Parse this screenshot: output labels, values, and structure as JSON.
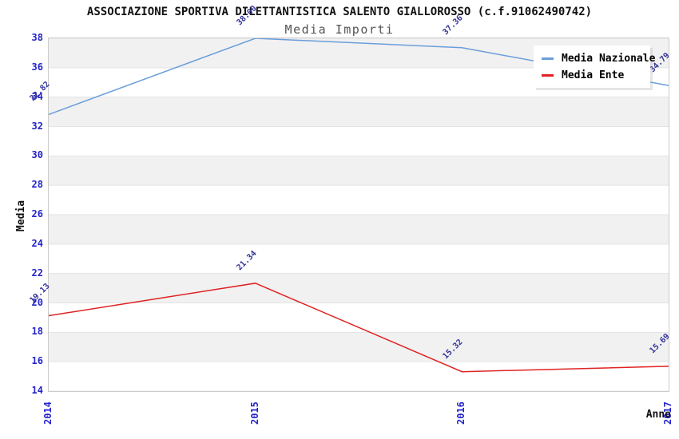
{
  "header": {
    "title": "ASSOCIAZIONE SPORTIVA DILETTANTISTICA SALENTO GIALLOROSSO (c.f.91062490742)",
    "subtitle": "Media Importi"
  },
  "legend": {
    "items": [
      {
        "label": "Media Nazionale",
        "color": "#6a9edb"
      },
      {
        "label": "Media Ente",
        "color": "#e02222"
      }
    ]
  },
  "chart_data": {
    "type": "line",
    "title": "ASSOCIAZIONE SPORTIVA DILETTANTISTICA SALENTO GIALLOROSSO (c.f.91062490742)",
    "subtitle": "Media Importi",
    "x": [
      "2014",
      "2015",
      "2016",
      "2017"
    ],
    "series": [
      {
        "name": "Media Nazionale",
        "color": "#6a9edb",
        "values": [
          32.82,
          38.0,
          37.36,
          34.79
        ]
      },
      {
        "name": "Media Ente",
        "color": "#e02222",
        "values": [
          19.13,
          21.34,
          15.32,
          15.69
        ]
      }
    ],
    "xlabel": "Anno",
    "ylabel": "Media",
    "ylim": [
      14,
      38
    ],
    "ytick_step": 2,
    "yticks": [
      14,
      16,
      18,
      20,
      22,
      24,
      26,
      28,
      30,
      32,
      34,
      36,
      38
    ],
    "grid": "horizontal-bands-alternating",
    "legend_position": "top-right",
    "point_label_format": "2-decimals",
    "point_label_rotation_deg": -45
  },
  "colors": {
    "background": "#ffffff",
    "band_gray": "#f1f1f1",
    "band_white": "#ffffff",
    "grid_line": "#e3e3e3",
    "plot_border": "#cccccc",
    "tick_label": "#2424cc",
    "point_label": "#333399",
    "title_text": "#111111",
    "subtitle_text": "#555555",
    "legend_text": "#000000"
  }
}
